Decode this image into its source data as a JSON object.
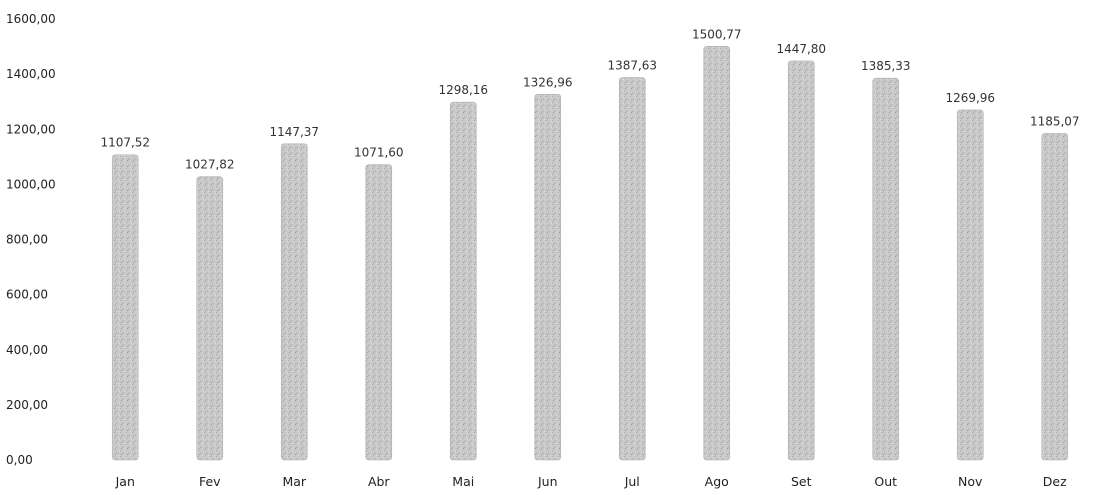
{
  "chart_data": {
    "type": "bar",
    "title": "",
    "xlabel": "",
    "ylabel": "",
    "categories": [
      "Jan",
      "Fev",
      "Mar",
      "Abr",
      "Mai",
      "Jun",
      "Jul",
      "Ago",
      "Set",
      "Out",
      "Nov",
      "Dez"
    ],
    "values": [
      1107.52,
      1027.82,
      1147.37,
      1071.6,
      1298.16,
      1326.96,
      1387.63,
      1500.77,
      1447.8,
      1385.33,
      1269.96,
      1185.07
    ],
    "data_labels": [
      "1107,52",
      "1027,82",
      "1147,37",
      "1071,60",
      "1298,16",
      "1326,96",
      "1387,63",
      "1500,77",
      "1447,80",
      "1385,33",
      "1269,96",
      "1185,07"
    ],
    "y_ticks": [
      0,
      200,
      400,
      600,
      800,
      1000,
      1200,
      1400,
      1600
    ],
    "y_tick_labels": [
      "0,00",
      "200,00",
      "400,00",
      "600,00",
      "800,00",
      "1000,00",
      "1200,00",
      "1400,00",
      "1600,00"
    ],
    "ylim": [
      0,
      1600
    ],
    "grid": false,
    "legend": "none",
    "bar_color": "#c4c4c4",
    "bar_edge_color": "#b0b0b0"
  }
}
